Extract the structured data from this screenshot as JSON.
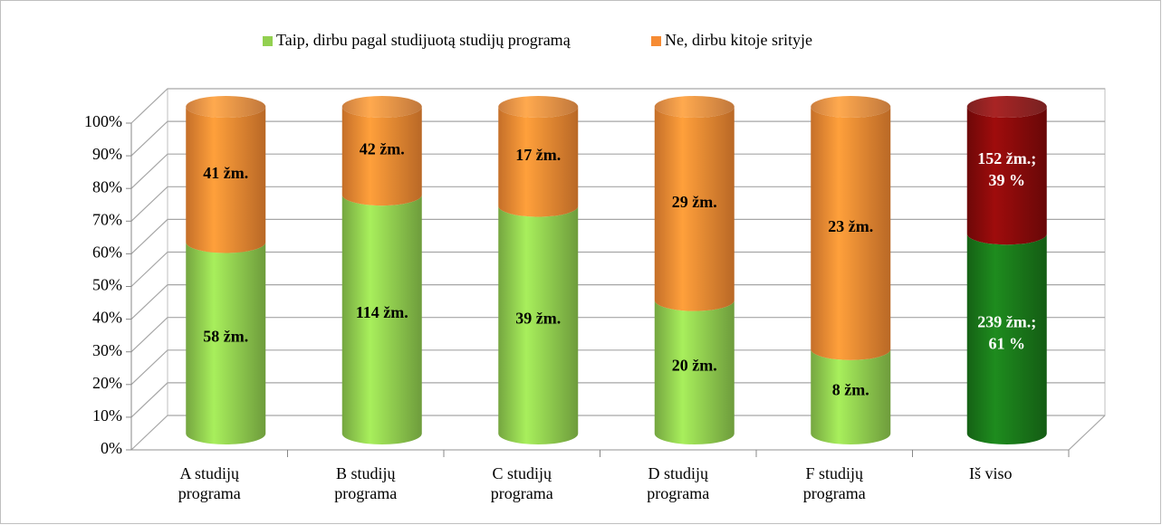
{
  "chart_data": {
    "type": "bar",
    "stacking": "percent",
    "categories": [
      "A studijų programa",
      "B studijų programa",
      "C studijų programa",
      "D studijų programa",
      "F studijų programa",
      "Iš viso"
    ],
    "series": [
      {
        "name": "Taip, dirbu pagal studijuotą studijų programą",
        "color": "#92d050",
        "colors": [
          "#92d050",
          "#92d050",
          "#92d050",
          "#92d050",
          "#92d050",
          "#1a7a1a"
        ],
        "values": [
          58,
          114,
          39,
          20,
          8,
          239
        ],
        "value_labels": [
          "58 žm.",
          "114 žm.",
          "39 žm.",
          "20 žm.",
          "8 žm.",
          "239 žm.; 61 %"
        ]
      },
      {
        "name": "Ne, dirbu kitoje srityje",
        "color": "#f68b33",
        "colors": [
          "#f68b33",
          "#f68b33",
          "#f68b33",
          "#f68b33",
          "#f68b33",
          "#8a0a0a"
        ],
        "values": [
          41,
          42,
          17,
          29,
          23,
          152
        ],
        "value_labels": [
          "41 žm.",
          "42 žm.",
          "17 žm.",
          "29 žm.",
          "23 žm.",
          "152 žm.; 39 %"
        ]
      }
    ],
    "ylim": [
      0,
      100
    ],
    "yticks": [
      {
        "value": 0,
        "label": "0%"
      },
      {
        "value": 10,
        "label": "10%"
      },
      {
        "value": 20,
        "label": "20%"
      },
      {
        "value": 30,
        "label": "30%"
      },
      {
        "value": 40,
        "label": "40%"
      },
      {
        "value": 50,
        "label": "50%"
      },
      {
        "value": 60,
        "label": "60%"
      },
      {
        "value": 70,
        "label": "70%"
      },
      {
        "value": 80,
        "label": "80%"
      },
      {
        "value": 90,
        "label": "90%"
      },
      {
        "value": 100,
        "label": "100%"
      }
    ],
    "grid": true,
    "legend": "top"
  }
}
